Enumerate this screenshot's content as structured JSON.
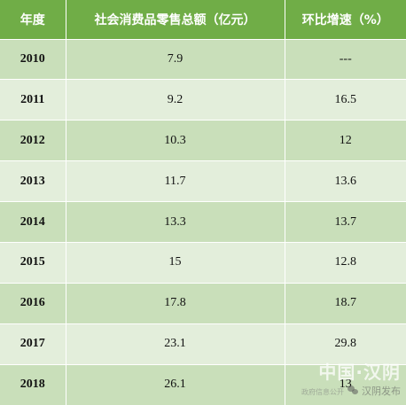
{
  "table": {
    "headers": [
      "年度",
      "社会消费品零售总额（亿元）",
      "环比增速（%）"
    ],
    "rows": [
      {
        "year": "2010",
        "total": "7.9",
        "growth": "---"
      },
      {
        "year": "2011",
        "total": "9.2",
        "growth": "16.5"
      },
      {
        "year": "2012",
        "total": "10.3",
        "growth": "12"
      },
      {
        "year": "2013",
        "total": "11.7",
        "growth": "13.6"
      },
      {
        "year": "2014",
        "total": "13.3",
        "growth": "13.7"
      },
      {
        "year": "2015",
        "total": "15",
        "growth": "12.8"
      },
      {
        "year": "2016",
        "total": "17.8",
        "growth": "18.7"
      },
      {
        "year": "2017",
        "total": "23.1",
        "growth": "29.8"
      },
      {
        "year": "2018",
        "total": "26.1",
        "growth": "13"
      }
    ]
  },
  "watermark": {
    "line1": "中国·汉阴",
    "line2_small": "政府信息公开",
    "line2": "汉阴发布",
    "icon": "wechat-icon"
  },
  "colors": {
    "header_bg": "#70ad47",
    "row_dark": "#c9dfba",
    "row_light": "#e3eedb"
  }
}
